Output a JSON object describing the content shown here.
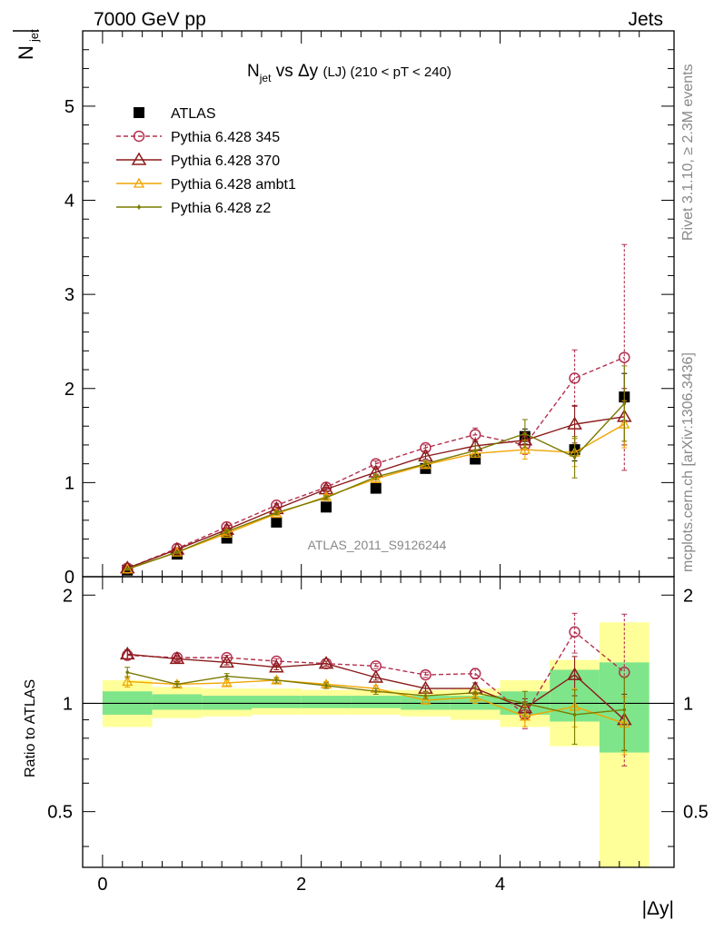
{
  "header": {
    "left": "7000 GeV pp",
    "right": "Jets"
  },
  "side_labels": {
    "rivet": "Rivet 3.1.10, ≥ 2.3M events",
    "site": "mcplots.cern.ch [arXiv:1306.3436]"
  },
  "chart_data": [
    {
      "type": "scatter",
      "title_main": "N",
      "title_sub": "jet",
      "title_mid": " vs Δy ",
      "title_small": "(LJ)",
      "title_tail": " (210 < pT < 240)",
      "ylabel_main": "N",
      "ylabel_sub": "jet",
      "watermark": "ATLAS_2011_S9126244",
      "xlim": [
        -0.2,
        5.75
      ],
      "ylim": [
        0,
        5.8
      ],
      "yticks": [
        0,
        1,
        2,
        3,
        4,
        5
      ],
      "x": [
        0.25,
        0.75,
        1.25,
        1.75,
        2.25,
        2.75,
        3.25,
        3.75,
        4.25,
        4.75,
        5.25
      ],
      "series": [
        {
          "name": "ATLAS",
          "color": "#000000",
          "marker": "square",
          "line": "none",
          "values": [
            0.07,
            0.24,
            0.41,
            0.58,
            0.74,
            0.94,
            1.15,
            1.25,
            1.49,
            1.35,
            1.91
          ],
          "errors": [
            0.01,
            0.02,
            0.02,
            0.03,
            0.03,
            0.04,
            0.05,
            0.05,
            0.08,
            0.12,
            0.25
          ]
        },
        {
          "name": "Pythia 6.428 345",
          "color": "#b3304e",
          "marker": "circle",
          "line": "dashed",
          "values": [
            0.09,
            0.3,
            0.53,
            0.76,
            0.95,
            1.2,
            1.37,
            1.51,
            1.4,
            2.11,
            2.33
          ],
          "errors": [
            0.01,
            0.01,
            0.02,
            0.02,
            0.02,
            0.03,
            0.03,
            0.07,
            0.1,
            0.3,
            1.2
          ]
        },
        {
          "name": "Pythia 6.428 370",
          "color": "#8b1a1a",
          "marker": "triangle",
          "line": "solid",
          "values": [
            0.09,
            0.29,
            0.5,
            0.72,
            0.93,
            1.11,
            1.28,
            1.39,
            1.45,
            1.62,
            1.7
          ],
          "errors": [
            0.01,
            0.01,
            0.02,
            0.02,
            0.02,
            0.03,
            0.03,
            0.05,
            0.08,
            0.2,
            0.3
          ]
        },
        {
          "name": "Pythia 6.428 ambt1",
          "color": "#f0a500",
          "marker": "triangle-small",
          "line": "solid",
          "values": [
            0.08,
            0.26,
            0.46,
            0.67,
            0.85,
            1.04,
            1.19,
            1.31,
            1.35,
            1.32,
            1.62
          ],
          "errors": [
            0.01,
            0.01,
            0.02,
            0.02,
            0.02,
            0.03,
            0.03,
            0.04,
            0.1,
            0.15,
            0.25
          ]
        },
        {
          "name": "Pythia 6.428 z2",
          "color": "#7a7a00",
          "marker": "dot",
          "line": "solid",
          "values": [
            0.08,
            0.26,
            0.48,
            0.68,
            0.84,
            1.06,
            1.2,
            1.34,
            1.52,
            1.27,
            1.84
          ],
          "errors": [
            0.01,
            0.01,
            0.02,
            0.02,
            0.02,
            0.03,
            0.03,
            0.05,
            0.15,
            0.22,
            0.4
          ]
        }
      ]
    },
    {
      "type": "scatter",
      "ylabel": "Ratio to ATLAS",
      "xlabel": "|Δy|",
      "xlim": [
        -0.2,
        5.75
      ],
      "ylim": [
        0.35,
        2.25
      ],
      "xticks": [
        0,
        2,
        4
      ],
      "yticks": [
        0.5,
        1,
        2
      ],
      "x": [
        0.25,
        0.75,
        1.25,
        1.75,
        2.25,
        2.75,
        3.25,
        3.75,
        4.25,
        4.75,
        5.25
      ],
      "bins": [
        [
          0,
          0.5
        ],
        [
          0.5,
          1.0
        ],
        [
          1.0,
          1.5
        ],
        [
          1.5,
          2.0
        ],
        [
          2.0,
          2.5
        ],
        [
          2.5,
          3.0
        ],
        [
          3.0,
          3.5
        ],
        [
          3.5,
          4.0
        ],
        [
          4.0,
          4.5
        ],
        [
          4.5,
          5.0
        ],
        [
          5.0,
          5.5
        ]
      ],
      "band_colors": {
        "inner": "#7fe58a",
        "outer": "#ffff99"
      },
      "band_inner": [
        [
          0.93,
          1.08
        ],
        [
          0.96,
          1.06
        ],
        [
          0.96,
          1.05
        ],
        [
          0.97,
          1.05
        ],
        [
          0.97,
          1.05
        ],
        [
          0.97,
          1.05
        ],
        [
          0.96,
          1.05
        ],
        [
          0.96,
          1.05
        ],
        [
          0.93,
          1.08
        ],
        [
          0.89,
          1.24
        ],
        [
          0.73,
          1.3
        ]
      ],
      "band_outer": [
        [
          0.86,
          1.16
        ],
        [
          0.91,
          1.11
        ],
        [
          0.92,
          1.1
        ],
        [
          0.93,
          1.1
        ],
        [
          0.93,
          1.09
        ],
        [
          0.93,
          1.09
        ],
        [
          0.92,
          1.09
        ],
        [
          0.9,
          1.1
        ],
        [
          0.86,
          1.16
        ],
        [
          0.76,
          1.32
        ],
        [
          0.35,
          1.68
        ]
      ],
      "series": [
        {
          "name": "Pythia 6.428 345",
          "color": "#b3304e",
          "marker": "circle",
          "line": "dashed",
          "values": [
            1.36,
            1.34,
            1.34,
            1.31,
            1.29,
            1.27,
            1.2,
            1.21,
            0.93,
            1.58,
            1.22
          ],
          "errors": [
            0.04,
            0.02,
            0.02,
            0.02,
            0.02,
            0.02,
            0.02,
            0.04,
            0.08,
            0.2,
            0.55
          ]
        },
        {
          "name": "Pythia 6.428 370",
          "color": "#8b1a1a",
          "marker": "triangle",
          "line": "solid",
          "values": [
            1.37,
            1.33,
            1.3,
            1.26,
            1.29,
            1.18,
            1.1,
            1.1,
            0.97,
            1.2,
            0.9
          ],
          "errors": [
            0.04,
            0.02,
            0.02,
            0.02,
            0.02,
            0.02,
            0.02,
            0.04,
            0.06,
            0.15,
            0.16
          ]
        },
        {
          "name": "Pythia 6.428 ambt1",
          "color": "#f0a500",
          "marker": "triangle-small",
          "line": "solid",
          "values": [
            1.15,
            1.13,
            1.14,
            1.16,
            1.13,
            1.1,
            1.02,
            1.04,
            0.92,
            0.98,
            0.88
          ],
          "errors": [
            0.04,
            0.02,
            0.02,
            0.02,
            0.02,
            0.02,
            0.02,
            0.04,
            0.06,
            0.12,
            0.16
          ]
        },
        {
          "name": "Pythia 6.428 z2",
          "color": "#7a7a00",
          "marker": "dot",
          "line": "solid",
          "values": [
            1.22,
            1.13,
            1.19,
            1.16,
            1.12,
            1.08,
            1.05,
            1.07,
            1.0,
            0.93,
            0.96
          ],
          "errors": [
            0.04,
            0.02,
            0.02,
            0.02,
            0.02,
            0.02,
            0.02,
            0.04,
            0.08,
            0.16,
            0.22
          ]
        }
      ]
    }
  ]
}
